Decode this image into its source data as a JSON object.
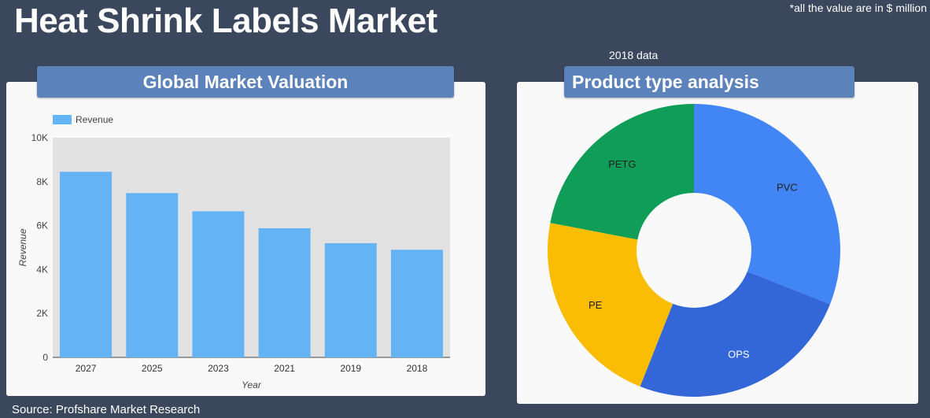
{
  "header": {
    "title": "Heat Shrink Labels Market",
    "note": "*all the value are in $ million",
    "year_note": "2018 data"
  },
  "left_panel": {
    "title": "Global Market Valuation"
  },
  "right_panel": {
    "title": "Product type analysis"
  },
  "footer": {
    "source": "Source: Profshare Market Research"
  },
  "colors": {
    "bar": "#63b3f5",
    "plot_bg": "#e2e2e2",
    "pvc": "#4285f4",
    "ops": "#3366d6",
    "pe": "#fbbc04",
    "petg": "#0f9d58"
  },
  "chart_data": [
    {
      "type": "bar",
      "categories": [
        "2027",
        "2025",
        "2023",
        "2021",
        "2019",
        "2018"
      ],
      "series": [
        {
          "name": "Revenue",
          "values": [
            8450,
            7480,
            6650,
            5880,
            5200,
            4900
          ]
        }
      ],
      "xlabel": "Year",
      "ylabel": "Revenue",
      "ylim": [
        0,
        10000
      ],
      "yticks": [
        "0",
        "2K",
        "4K",
        "6K",
        "8K",
        "10K"
      ],
      "grid": false,
      "legend": "top-left"
    },
    {
      "type": "pie",
      "donut": true,
      "labels": [
        "PVC",
        "OPS",
        "PE",
        "PETG"
      ],
      "values": [
        31,
        25,
        22,
        22
      ],
      "legend": "none"
    }
  ]
}
